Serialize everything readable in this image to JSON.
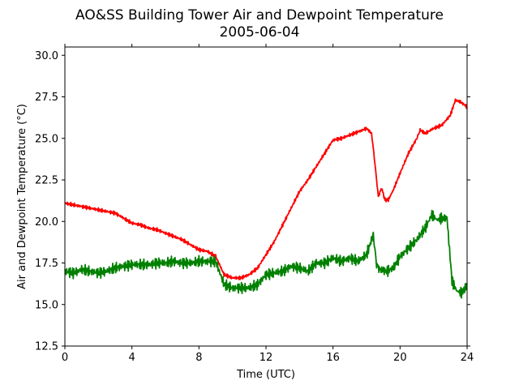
{
  "chart_data": {
    "type": "line",
    "title": "AO&SS Building Tower Air and Dewpoint Temperature",
    "subtitle": "2005-06-04",
    "xlabel": "Time (UTC)",
    "ylabel": "Air and Dewpoint Temperature (°C)",
    "xlim": [
      0,
      24
    ],
    "ylim": [
      12.5,
      30.5
    ],
    "xticks": [
      0,
      4,
      8,
      12,
      16,
      20,
      24
    ],
    "xtick_labels": [
      "0",
      "4",
      "8",
      "12",
      "16",
      "20",
      "24"
    ],
    "yticks": [
      12.5,
      15.0,
      17.5,
      20.0,
      22.5,
      25.0,
      27.5,
      30.0
    ],
    "ytick_labels": [
      "12.5",
      "15.0",
      "17.5",
      "20.0",
      "22.5",
      "25.0",
      "27.5",
      "30.0"
    ],
    "grid": false,
    "series": [
      {
        "color": "#ff0000",
        "x": [
          0,
          0.5,
          1,
          1.5,
          2,
          2.5,
          3,
          3.5,
          4,
          4.5,
          5,
          5.5,
          6,
          6.5,
          7,
          7.5,
          8,
          8.5,
          9,
          9.5,
          10,
          10.5,
          11,
          11.5,
          12,
          12.5,
          13,
          13.5,
          14,
          14.5,
          15,
          15.5,
          16,
          16.5,
          17,
          17.5,
          18,
          18.3,
          18.5,
          18.7,
          18.9,
          19.1,
          19.3,
          19.6,
          20,
          20.5,
          21,
          21.2,
          21.5,
          22,
          22.5,
          23,
          23.3,
          23.6,
          24
        ],
        "values": [
          21.1,
          21.0,
          20.9,
          20.8,
          20.7,
          20.6,
          20.5,
          20.2,
          19.9,
          19.8,
          19.6,
          19.5,
          19.3,
          19.1,
          18.9,
          18.6,
          18.3,
          18.2,
          17.9,
          16.8,
          16.6,
          16.6,
          16.8,
          17.2,
          18.0,
          18.8,
          19.8,
          20.8,
          21.8,
          22.5,
          23.3,
          24.1,
          24.9,
          25.0,
          25.2,
          25.4,
          25.6,
          25.3,
          23.5,
          21.5,
          22.0,
          21.3,
          21.3,
          21.9,
          22.9,
          24.1,
          25.0,
          25.5,
          25.3,
          25.6,
          25.8,
          26.4,
          27.3,
          27.2,
          26.9
        ]
      },
      {
        "color": "#008000",
        "x": [
          0,
          0.5,
          1,
          1.5,
          2,
          2.5,
          3,
          3.5,
          4,
          4.5,
          5,
          5.5,
          6,
          6.5,
          7,
          7.5,
          8,
          8.5,
          9,
          9.5,
          10,
          10.5,
          11,
          11.5,
          12,
          12.5,
          13,
          13.5,
          14,
          14.5,
          15,
          15.5,
          16,
          16.5,
          17,
          17.5,
          18,
          18.4,
          18.6,
          18.8,
          19.2,
          19.6,
          20,
          20.5,
          21,
          21.5,
          21.9,
          22.2,
          22.5,
          22.8,
          23.1,
          23.4,
          23.7,
          24
        ],
        "values": [
          17.0,
          16.9,
          17.1,
          17.0,
          16.9,
          17.0,
          17.2,
          17.3,
          17.4,
          17.4,
          17.4,
          17.5,
          17.5,
          17.6,
          17.5,
          17.5,
          17.6,
          17.6,
          17.6,
          16.2,
          16.0,
          16.0,
          16.0,
          16.2,
          16.8,
          16.9,
          17.0,
          17.3,
          17.2,
          17.0,
          17.5,
          17.5,
          17.8,
          17.6,
          17.8,
          17.6,
          18.0,
          19.2,
          17.4,
          17.1,
          17.0,
          17.2,
          17.9,
          18.4,
          18.9,
          19.6,
          20.4,
          20.1,
          20.2,
          20.2,
          16.4,
          15.8,
          15.7,
          16.2
        ]
      }
    ]
  }
}
